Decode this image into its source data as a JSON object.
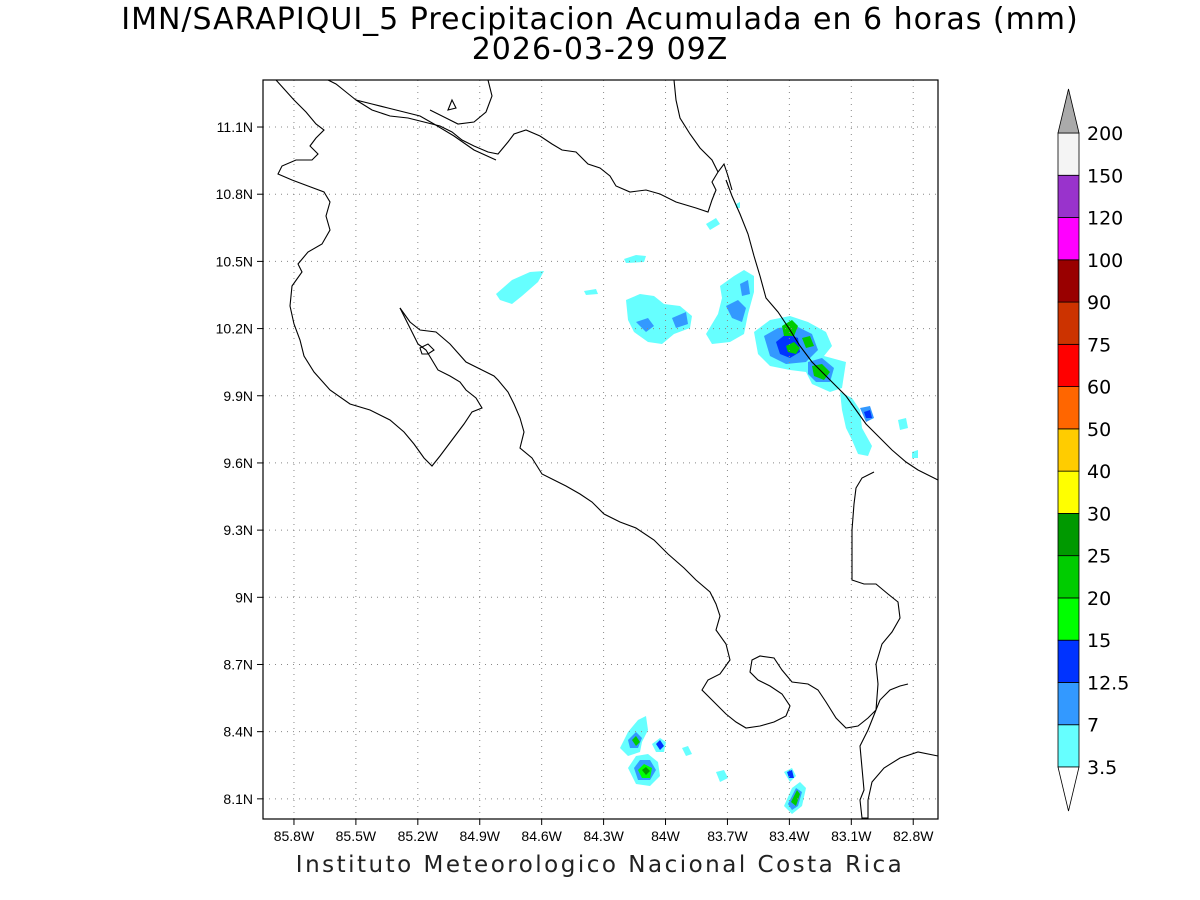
{
  "title_line1": "IMN/SARAPIQUI_5 Precipitacion Acumulada en 6 horas (mm)",
  "title_line2": "2026-03-29 09Z",
  "footer": "Instituto Meteorologico Nacional Costa Rica",
  "map": {
    "lon_range": [
      -85.95,
      -82.68
    ],
    "lat_range": [
      8.01,
      11.31
    ],
    "lon_ticks": [
      "85.8W",
      "85.5W",
      "85.2W",
      "84.9W",
      "84.6W",
      "84.3W",
      "84W",
      "83.7W",
      "83.4W",
      "83.1W",
      "82.8W"
    ],
    "lat_ticks": [
      "11.1N",
      "10.8N",
      "10.5N",
      "10.2N",
      "9.9N",
      "9.6N",
      "9.3N",
      "9N",
      "8.7N",
      "8.4N",
      "8.1N"
    ],
    "grid": "dotted"
  },
  "colorbar": {
    "labels": [
      "3.5",
      "7",
      "12.5",
      "15",
      "20",
      "25",
      "30",
      "40",
      "50",
      "60",
      "75",
      "90",
      "100",
      "120",
      "150",
      "200"
    ],
    "colors": [
      "#66ffff",
      "#3399ff",
      "#0033ff",
      "#00ff00",
      "#00cc00",
      "#009900",
      "#ffff00",
      "#ffcc00",
      "#ff6600",
      "#ff0000",
      "#cc3300",
      "#990000",
      "#ff00ff",
      "#9933cc",
      "#f4f4f4"
    ],
    "below_color": "#ffffff",
    "above_color": "#aaaaaa"
  }
}
